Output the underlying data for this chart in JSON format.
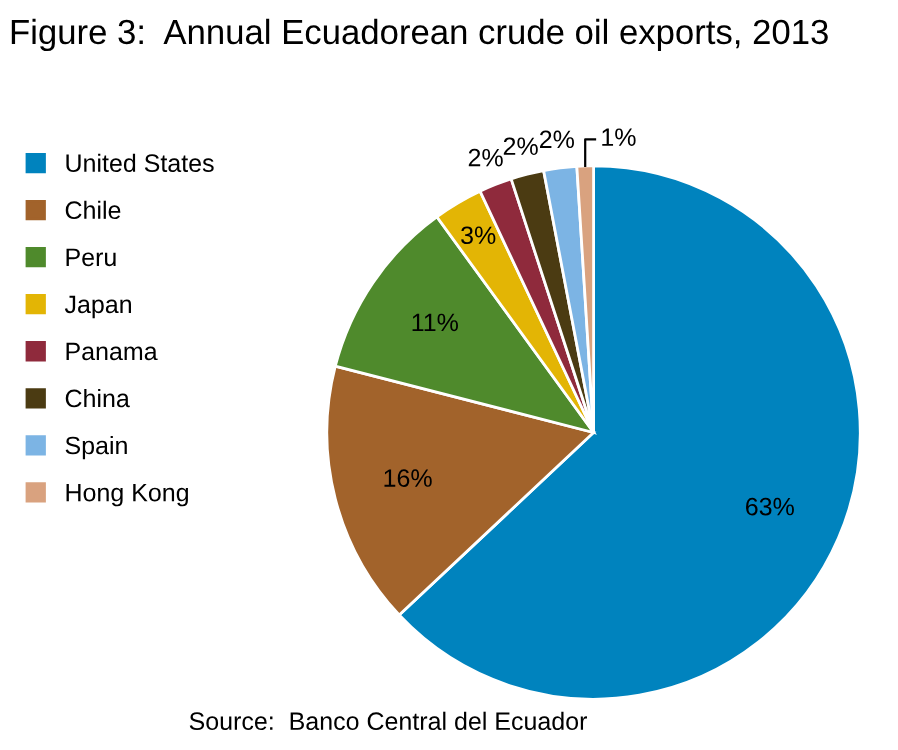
{
  "chart_data": {
    "type": "pie",
    "title": "Figure 3:  Annual Ecuadorean crude oil exports, 2013",
    "categories": [
      "United States",
      "Chile",
      "Peru",
      "Japan",
      "Panama",
      "China",
      "Spain",
      "Hong Kong"
    ],
    "values": [
      63,
      16,
      11,
      3,
      2,
      2,
      2,
      1
    ],
    "colors": [
      "#0083be",
      "#a2632b",
      "#4f8a2c",
      "#e3b505",
      "#8f2a3c",
      "#4b3b12",
      "#7cb4e4",
      "#d9a27f"
    ],
    "value_labels": [
      "63%",
      "16%",
      "11%",
      "3%",
      "2%",
      "2%",
      "2%",
      "1%"
    ],
    "legend": "left",
    "annotations": [
      "Source:  Banco Central del Ecuador"
    ]
  }
}
